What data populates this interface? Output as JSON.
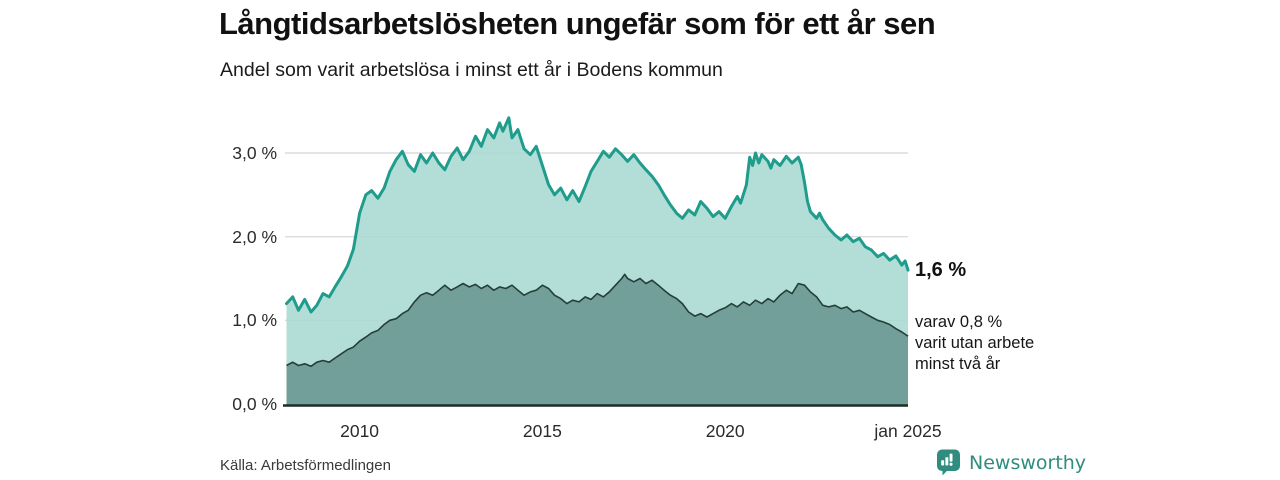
{
  "header": {
    "title": "Långtidsarbetslösheten ungefär som för ett år sen",
    "subtitle": "Andel som varit arbetslösa i minst ett år i Bodens kommun"
  },
  "footer": {
    "source": "Källa: Arbetsförmedlingen",
    "brand": "Newsworthy"
  },
  "colors": {
    "line_total": "#1f9c8c",
    "fill_total": "#a9dad2",
    "line_two_year": "#243f39",
    "fill_two_year": "#6f9c96",
    "gridline": "#dcdcdc",
    "axis": "#1c2b27",
    "brand_teal": "#2f8c7e"
  },
  "chart_data": {
    "type": "area",
    "title": "Långtidsarbetslösheten ungefär som för ett år sen",
    "subtitle": "Andel som varit arbetslösa i minst ett år i Bodens kommun",
    "source": "Källa: Arbetsförmedlingen",
    "xlabel": "",
    "ylabel": "",
    "grid": true,
    "x_domain": [
      2007.96,
      2025.0
    ],
    "ylim": [
      0,
      3.5
    ],
    "yticks": [
      {
        "value": 0,
        "label": "0,0 %"
      },
      {
        "value": 1,
        "label": "1,0 %"
      },
      {
        "value": 2,
        "label": "2,0 %"
      },
      {
        "value": 3,
        "label": "3,0 %"
      }
    ],
    "xticks": [
      {
        "value": 2010,
        "label": "2010"
      },
      {
        "value": 2015,
        "label": "2015"
      },
      {
        "value": 2020,
        "label": "2020"
      },
      {
        "value": 2025,
        "label": "jan 2025"
      }
    ],
    "end_labels": {
      "primary": "1,6 %",
      "primary_value": 1.6,
      "secondary_lines": [
        "varav 0,8 %",
        "varit utan arbete",
        "minst två år"
      ]
    },
    "series": [
      {
        "name": "minst ett år",
        "end_value": 1.6,
        "points": [
          [
            2008,
            1.2
          ],
          [
            2008.17,
            1.28
          ],
          [
            2008.33,
            1.12
          ],
          [
            2008.5,
            1.25
          ],
          [
            2008.67,
            1.1
          ],
          [
            2008.83,
            1.18
          ],
          [
            2009,
            1.32
          ],
          [
            2009.17,
            1.28
          ],
          [
            2009.33,
            1.4
          ],
          [
            2009.5,
            1.52
          ],
          [
            2009.67,
            1.65
          ],
          [
            2009.83,
            1.85
          ],
          [
            2010,
            2.28
          ],
          [
            2010.17,
            2.5
          ],
          [
            2010.33,
            2.55
          ],
          [
            2010.5,
            2.46
          ],
          [
            2010.67,
            2.58
          ],
          [
            2010.83,
            2.78
          ],
          [
            2011,
            2.92
          ],
          [
            2011.17,
            3.02
          ],
          [
            2011.33,
            2.86
          ],
          [
            2011.5,
            2.78
          ],
          [
            2011.67,
            2.98
          ],
          [
            2011.83,
            2.88
          ],
          [
            2012,
            3.0
          ],
          [
            2012.17,
            2.88
          ],
          [
            2012.33,
            2.8
          ],
          [
            2012.5,
            2.96
          ],
          [
            2012.67,
            3.06
          ],
          [
            2012.83,
            2.92
          ],
          [
            2013,
            3.02
          ],
          [
            2013.17,
            3.2
          ],
          [
            2013.33,
            3.08
          ],
          [
            2013.5,
            3.28
          ],
          [
            2013.67,
            3.18
          ],
          [
            2013.83,
            3.36
          ],
          [
            2013.92,
            3.26
          ],
          [
            2014.08,
            3.42
          ],
          [
            2014.17,
            3.18
          ],
          [
            2014.33,
            3.28
          ],
          [
            2014.5,
            3.05
          ],
          [
            2014.67,
            2.98
          ],
          [
            2014.83,
            3.08
          ],
          [
            2015,
            2.85
          ],
          [
            2015.17,
            2.62
          ],
          [
            2015.33,
            2.5
          ],
          [
            2015.5,
            2.58
          ],
          [
            2015.67,
            2.44
          ],
          [
            2015.83,
            2.55
          ],
          [
            2016,
            2.42
          ],
          [
            2016.17,
            2.6
          ],
          [
            2016.33,
            2.78
          ],
          [
            2016.5,
            2.9
          ],
          [
            2016.67,
            3.02
          ],
          [
            2016.83,
            2.95
          ],
          [
            2017,
            3.05
          ],
          [
            2017.17,
            2.98
          ],
          [
            2017.33,
            2.9
          ],
          [
            2017.5,
            2.98
          ],
          [
            2017.67,
            2.88
          ],
          [
            2017.83,
            2.8
          ],
          [
            2018,
            2.72
          ],
          [
            2018.17,
            2.62
          ],
          [
            2018.33,
            2.5
          ],
          [
            2018.5,
            2.38
          ],
          [
            2018.67,
            2.28
          ],
          [
            2018.83,
            2.22
          ],
          [
            2019,
            2.32
          ],
          [
            2019.17,
            2.26
          ],
          [
            2019.33,
            2.42
          ],
          [
            2019.5,
            2.34
          ],
          [
            2019.67,
            2.24
          ],
          [
            2019.83,
            2.3
          ],
          [
            2020,
            2.22
          ],
          [
            2020.17,
            2.36
          ],
          [
            2020.33,
            2.48
          ],
          [
            2020.42,
            2.4
          ],
          [
            2020.58,
            2.62
          ],
          [
            2020.67,
            2.95
          ],
          [
            2020.75,
            2.85
          ],
          [
            2020.83,
            3.0
          ],
          [
            2020.92,
            2.88
          ],
          [
            2021,
            2.98
          ],
          [
            2021.17,
            2.9
          ],
          [
            2021.25,
            2.82
          ],
          [
            2021.33,
            2.92
          ],
          [
            2021.5,
            2.85
          ],
          [
            2021.67,
            2.96
          ],
          [
            2021.83,
            2.88
          ],
          [
            2022,
            2.95
          ],
          [
            2022.08,
            2.86
          ],
          [
            2022.17,
            2.65
          ],
          [
            2022.25,
            2.42
          ],
          [
            2022.33,
            2.3
          ],
          [
            2022.5,
            2.22
          ],
          [
            2022.58,
            2.28
          ],
          [
            2022.67,
            2.2
          ],
          [
            2022.83,
            2.1
          ],
          [
            2023,
            2.02
          ],
          [
            2023.17,
            1.96
          ],
          [
            2023.33,
            2.02
          ],
          [
            2023.5,
            1.94
          ],
          [
            2023.67,
            1.98
          ],
          [
            2023.83,
            1.88
          ],
          [
            2024,
            1.84
          ],
          [
            2024.17,
            1.76
          ],
          [
            2024.33,
            1.8
          ],
          [
            2024.5,
            1.72
          ],
          [
            2024.67,
            1.77
          ],
          [
            2024.83,
            1.66
          ],
          [
            2024.92,
            1.71
          ],
          [
            2025,
            1.6
          ]
        ]
      },
      {
        "name": "minst två år",
        "end_value": 0.8,
        "points": [
          [
            2008,
            0.46
          ],
          [
            2008.17,
            0.5
          ],
          [
            2008.33,
            0.46
          ],
          [
            2008.5,
            0.48
          ],
          [
            2008.67,
            0.45
          ],
          [
            2008.83,
            0.5
          ],
          [
            2009,
            0.52
          ],
          [
            2009.17,
            0.5
          ],
          [
            2009.33,
            0.55
          ],
          [
            2009.5,
            0.6
          ],
          [
            2009.67,
            0.65
          ],
          [
            2009.83,
            0.68
          ],
          [
            2010,
            0.75
          ],
          [
            2010.17,
            0.8
          ],
          [
            2010.33,
            0.85
          ],
          [
            2010.5,
            0.88
          ],
          [
            2010.67,
            0.95
          ],
          [
            2010.83,
            1.0
          ],
          [
            2011,
            1.02
          ],
          [
            2011.17,
            1.08
          ],
          [
            2011.33,
            1.12
          ],
          [
            2011.5,
            1.22
          ],
          [
            2011.67,
            1.3
          ],
          [
            2011.83,
            1.33
          ],
          [
            2012,
            1.3
          ],
          [
            2012.17,
            1.36
          ],
          [
            2012.33,
            1.42
          ],
          [
            2012.5,
            1.36
          ],
          [
            2012.67,
            1.4
          ],
          [
            2012.83,
            1.44
          ],
          [
            2013,
            1.4
          ],
          [
            2013.17,
            1.43
          ],
          [
            2013.33,
            1.38
          ],
          [
            2013.5,
            1.42
          ],
          [
            2013.67,
            1.36
          ],
          [
            2013.83,
            1.4
          ],
          [
            2014,
            1.38
          ],
          [
            2014.17,
            1.42
          ],
          [
            2014.33,
            1.36
          ],
          [
            2014.5,
            1.3
          ],
          [
            2014.67,
            1.34
          ],
          [
            2014.83,
            1.36
          ],
          [
            2015,
            1.42
          ],
          [
            2015.17,
            1.38
          ],
          [
            2015.33,
            1.3
          ],
          [
            2015.5,
            1.26
          ],
          [
            2015.67,
            1.2
          ],
          [
            2015.83,
            1.24
          ],
          [
            2016,
            1.22
          ],
          [
            2016.17,
            1.28
          ],
          [
            2016.33,
            1.25
          ],
          [
            2016.5,
            1.32
          ],
          [
            2016.67,
            1.28
          ],
          [
            2016.83,
            1.34
          ],
          [
            2017,
            1.42
          ],
          [
            2017.17,
            1.5
          ],
          [
            2017.25,
            1.55
          ],
          [
            2017.33,
            1.5
          ],
          [
            2017.5,
            1.46
          ],
          [
            2017.67,
            1.5
          ],
          [
            2017.83,
            1.44
          ],
          [
            2018,
            1.48
          ],
          [
            2018.17,
            1.42
          ],
          [
            2018.33,
            1.36
          ],
          [
            2018.5,
            1.3
          ],
          [
            2018.67,
            1.26
          ],
          [
            2018.83,
            1.2
          ],
          [
            2019,
            1.1
          ],
          [
            2019.17,
            1.05
          ],
          [
            2019.33,
            1.08
          ],
          [
            2019.5,
            1.04
          ],
          [
            2019.67,
            1.08
          ],
          [
            2019.83,
            1.12
          ],
          [
            2020,
            1.15
          ],
          [
            2020.17,
            1.2
          ],
          [
            2020.33,
            1.16
          ],
          [
            2020.5,
            1.22
          ],
          [
            2020.67,
            1.18
          ],
          [
            2020.83,
            1.24
          ],
          [
            2021,
            1.2
          ],
          [
            2021.17,
            1.26
          ],
          [
            2021.33,
            1.22
          ],
          [
            2021.5,
            1.3
          ],
          [
            2021.67,
            1.36
          ],
          [
            2021.83,
            1.32
          ],
          [
            2022,
            1.44
          ],
          [
            2022.17,
            1.42
          ],
          [
            2022.33,
            1.34
          ],
          [
            2022.5,
            1.28
          ],
          [
            2022.67,
            1.18
          ],
          [
            2022.83,
            1.16
          ],
          [
            2023,
            1.18
          ],
          [
            2023.17,
            1.14
          ],
          [
            2023.33,
            1.16
          ],
          [
            2023.5,
            1.1
          ],
          [
            2023.67,
            1.12
          ],
          [
            2023.83,
            1.08
          ],
          [
            2024,
            1.04
          ],
          [
            2024.17,
            1.0
          ],
          [
            2024.33,
            0.98
          ],
          [
            2024.5,
            0.95
          ],
          [
            2024.67,
            0.9
          ],
          [
            2024.83,
            0.86
          ],
          [
            2025,
            0.81
          ]
        ]
      }
    ]
  }
}
